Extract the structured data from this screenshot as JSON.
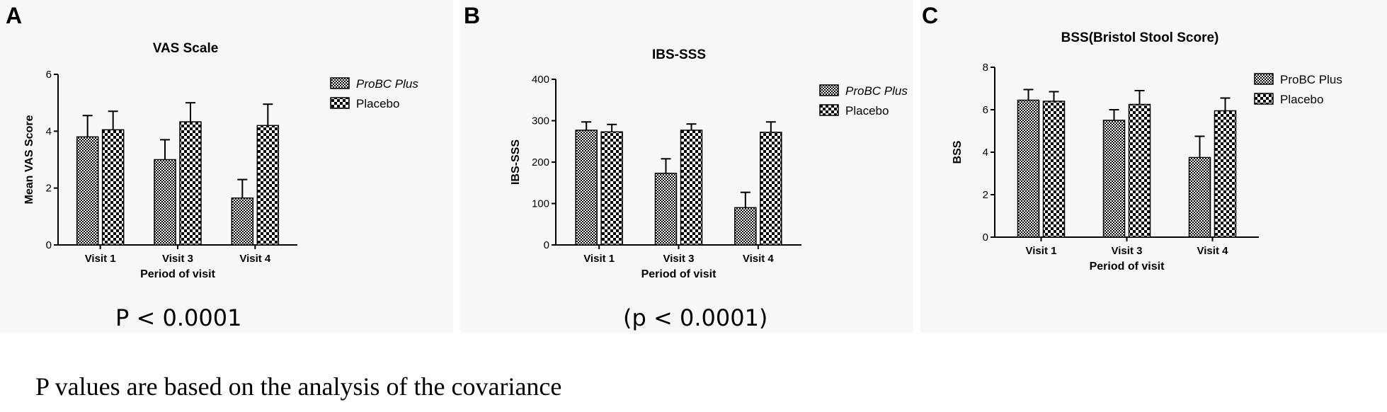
{
  "panels": [
    {
      "letter": "A",
      "pvalue": "P < 0.0001",
      "chart_data": {
        "type": "bar",
        "title": "VAS Scale",
        "xlabel": "Period of visit",
        "ylabel": "Mean VAS Score",
        "categories": [
          "Visit 1",
          "Visit 3",
          "Visit 4"
        ],
        "ylim": [
          0,
          6
        ],
        "yticks": [
          0,
          2,
          4,
          6
        ],
        "series": [
          {
            "name": "ProBC Plus",
            "italic": true,
            "pattern": "fine",
            "values": [
              3.8,
              3.0,
              1.65
            ],
            "errors": [
              0.75,
              0.7,
              0.65
            ]
          },
          {
            "name": "Placebo",
            "italic": false,
            "pattern": "coarse",
            "values": [
              4.05,
              4.33,
              4.2
            ],
            "errors": [
              0.65,
              0.67,
              0.75
            ]
          }
        ],
        "legend": "top-right",
        "grid": false
      }
    },
    {
      "letter": "B",
      "pvalue": "(p < 0.0001)",
      "chart_data": {
        "type": "bar",
        "title": "IBS-SSS",
        "xlabel": "Period of visit",
        "ylabel": "IBS-SSS",
        "categories": [
          "Visit 1",
          "Visit 3",
          "Visit 4"
        ],
        "ylim": [
          0,
          400
        ],
        "yticks": [
          0,
          100,
          200,
          300,
          400
        ],
        "series": [
          {
            "name": "ProBC Plus",
            "italic": true,
            "pattern": "fine",
            "values": [
              277,
              173,
              90
            ],
            "errors": [
              20,
              35,
              37
            ]
          },
          {
            "name": "Placebo",
            "italic": false,
            "pattern": "coarse",
            "values": [
              273,
              277,
              272
            ],
            "errors": [
              18,
              15,
              25
            ]
          }
        ],
        "legend": "top-right",
        "grid": false
      }
    },
    {
      "letter": "C",
      "pvalue": "",
      "chart_data": {
        "type": "bar",
        "title": "BSS(Bristol Stool Score)",
        "xlabel": "Period of visit",
        "ylabel": "BSS",
        "categories": [
          "Visit 1",
          "Visit 3",
          "Visit 4"
        ],
        "ylim": [
          0,
          8
        ],
        "yticks": [
          0,
          2,
          4,
          6,
          8
        ],
        "series": [
          {
            "name": "ProBC Plus",
            "italic": false,
            "pattern": "fine",
            "values": [
              6.45,
              5.5,
              3.75
            ],
            "errors": [
              0.5,
              0.5,
              1.0
            ]
          },
          {
            "name": "Placebo",
            "italic": false,
            "pattern": "coarse",
            "values": [
              6.4,
              6.25,
              5.95
            ],
            "errors": [
              0.45,
              0.65,
              0.6
            ]
          }
        ],
        "legend": "top-right",
        "grid": false
      }
    }
  ],
  "footnote": "P values are based on the analysis of the covariance"
}
